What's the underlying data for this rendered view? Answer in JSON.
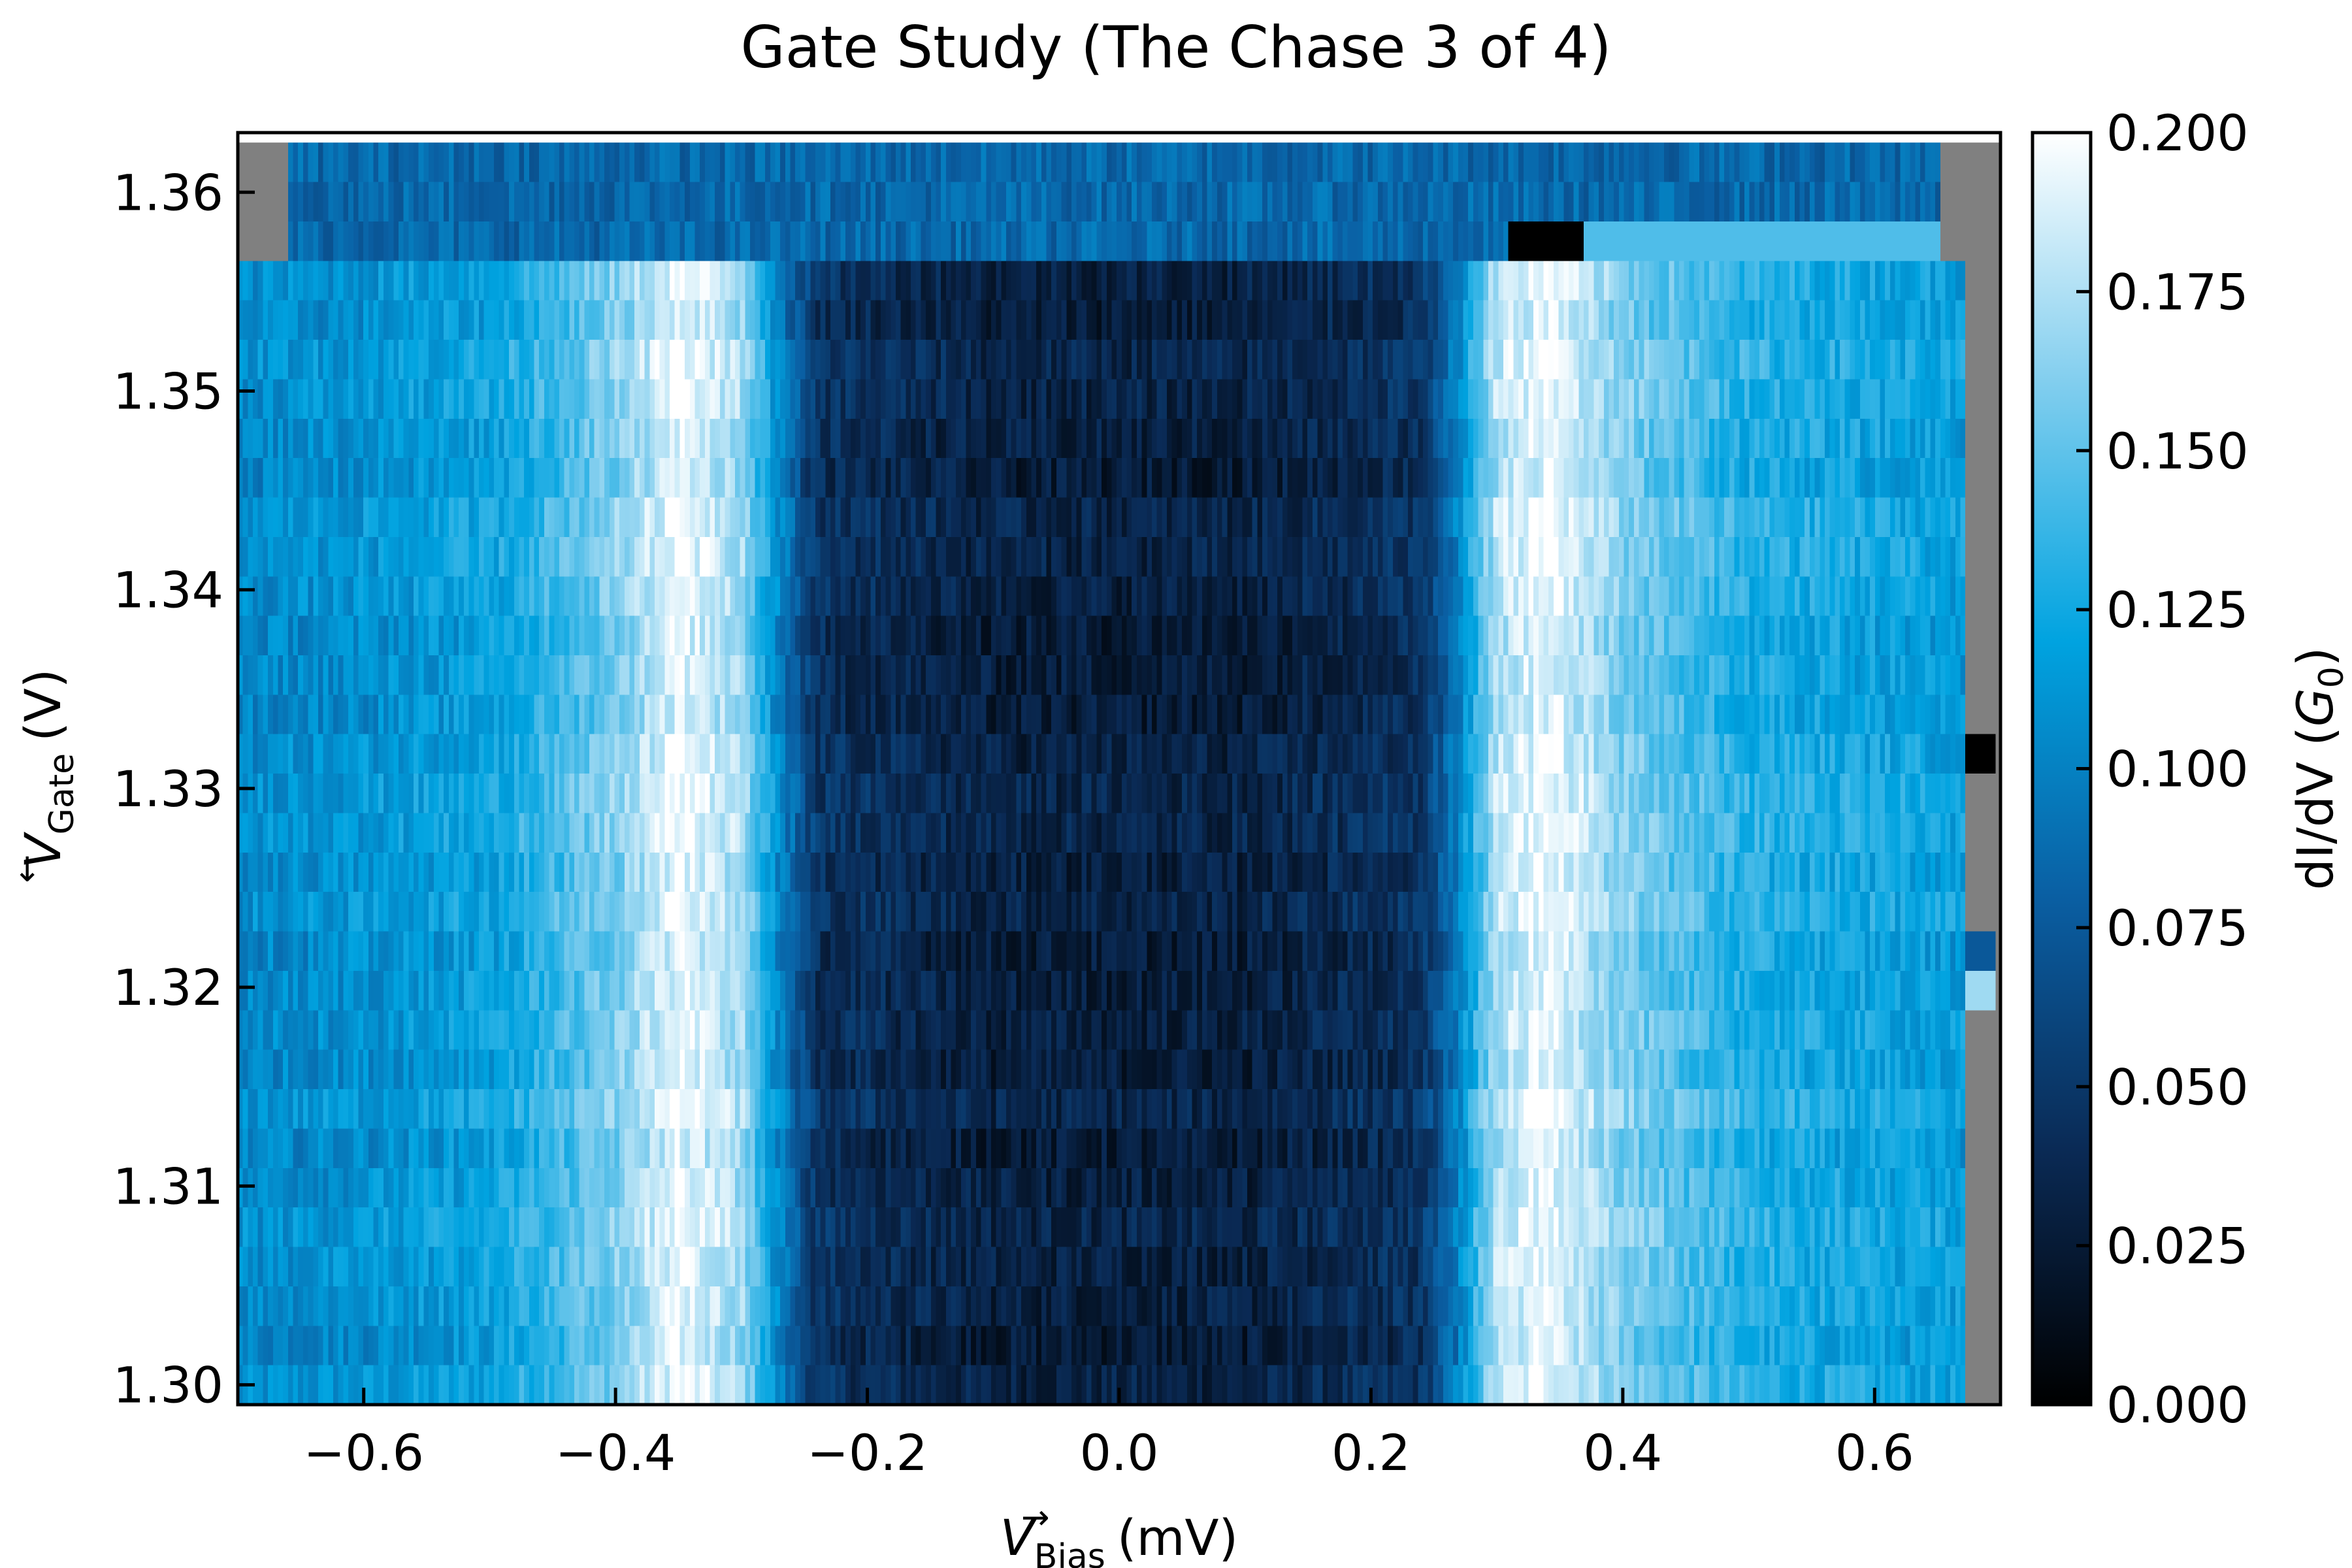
{
  "chart_data": {
    "type": "heatmap",
    "title": "Gate Study (The Chase 3 of 4)",
    "xlabel": {
      "symbol": "V",
      "subscript": "Bias",
      "arrow": "→",
      "unit": "(mV)"
    },
    "ylabel": {
      "symbol": "V",
      "subscript": "Gate",
      "arrow": "←",
      "unit": "(V)"
    },
    "colorbar_label": {
      "prefix": "dI/dV (",
      "symbol": "G",
      "subscript": "0",
      "suffix": ")"
    },
    "xlim": [
      -0.7,
      0.7
    ],
    "ylim": [
      1.299,
      1.363
    ],
    "clim": [
      0.0,
      0.2
    ],
    "x_ticks": [
      {
        "value": -0.6,
        "label": "−0.6"
      },
      {
        "value": -0.4,
        "label": "−0.4"
      },
      {
        "value": -0.2,
        "label": "−0.2"
      },
      {
        "value": 0.0,
        "label": "0.0"
      },
      {
        "value": 0.2,
        "label": "0.2"
      },
      {
        "value": 0.4,
        "label": "0.4"
      },
      {
        "value": 0.6,
        "label": "0.6"
      }
    ],
    "y_ticks": [
      {
        "value": 1.3,
        "label": "1.30"
      },
      {
        "value": 1.31,
        "label": "1.31"
      },
      {
        "value": 1.32,
        "label": "1.32"
      },
      {
        "value": 1.33,
        "label": "1.33"
      },
      {
        "value": 1.34,
        "label": "1.34"
      },
      {
        "value": 1.35,
        "label": "1.35"
      },
      {
        "value": 1.36,
        "label": "1.36"
      }
    ],
    "colorbar_ticks": [
      {
        "value": 0.0,
        "label": "0.000"
      },
      {
        "value": 0.025,
        "label": "0.025"
      },
      {
        "value": 0.05,
        "label": "0.050"
      },
      {
        "value": 0.075,
        "label": "0.075"
      },
      {
        "value": 0.1,
        "label": "0.100"
      },
      {
        "value": 0.125,
        "label": "0.125"
      },
      {
        "value": 0.15,
        "label": "0.150"
      },
      {
        "value": 0.175,
        "label": "0.175"
      },
      {
        "value": 0.2,
        "label": "0.200"
      }
    ],
    "colormap": [
      "#000000",
      "#0a2a55",
      "#0a5fa3",
      "#00a3e0",
      "#7fcdee",
      "#ffffff"
    ],
    "no_data_color": "#808080",
    "gate_rows": {
      "start": 1.2995,
      "step": 0.002,
      "count": 32
    },
    "bias_columns": {
      "start": -0.7,
      "step": 0.004,
      "count": 351
    },
    "profile": [
      {
        "bias": -0.7,
        "dIdV": 0.105
      },
      {
        "bias": -0.6,
        "dIdV": 0.11
      },
      {
        "bias": -0.5,
        "dIdV": 0.12
      },
      {
        "bias": -0.4,
        "dIdV": 0.16
      },
      {
        "bias": -0.35,
        "dIdV": 0.195
      },
      {
        "bias": -0.3,
        "dIdV": 0.17
      },
      {
        "bias": -0.27,
        "dIdV": 0.1
      },
      {
        "bias": -0.24,
        "dIdV": 0.045
      },
      {
        "bias": -0.1,
        "dIdV": 0.03
      },
      {
        "bias": 0.1,
        "dIdV": 0.03
      },
      {
        "bias": 0.24,
        "dIdV": 0.045
      },
      {
        "bias": 0.27,
        "dIdV": 0.1
      },
      {
        "bias": 0.3,
        "dIdV": 0.175
      },
      {
        "bias": 0.34,
        "dIdV": 0.195
      },
      {
        "bias": 0.4,
        "dIdV": 0.16
      },
      {
        "bias": 0.5,
        "dIdV": 0.13
      },
      {
        "bias": 0.7,
        "dIdV": 0.115
      }
    ],
    "noise_amplitude": 0.015,
    "top_rows": {
      "from_gate": 1.357,
      "dIdV": 0.085,
      "no_data_left_until": -0.66,
      "no_data_right_from": 0.655
    },
    "right_no_data_from_bias": 0.673,
    "artifacts": [
      {
        "gate": 1.3585,
        "bias_from": 0.31,
        "bias_to": 0.37,
        "dIdV": 0.0
      },
      {
        "gate": 1.3585,
        "bias_from": 0.37,
        "bias_to": 0.655,
        "dIdV": 0.145
      },
      {
        "gate": 1.3315,
        "bias_from": 0.673,
        "bias_to": 0.7,
        "dIdV": 0.0
      },
      {
        "gate": 1.3215,
        "bias_from": 0.673,
        "bias_to": 0.7,
        "dIdV": 0.075
      },
      {
        "gate": 1.3195,
        "bias_from": 0.673,
        "bias_to": 0.7,
        "dIdV": 0.17
      }
    ]
  }
}
